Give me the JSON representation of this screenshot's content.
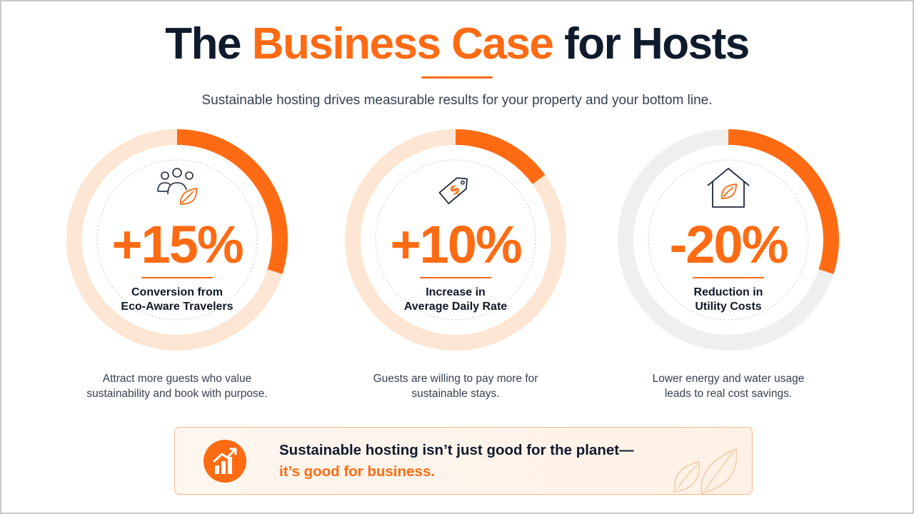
{
  "colors": {
    "accent": "#ff6b13",
    "accent_light": "#fde6d3",
    "track_gray": "#efefef",
    "navy": "#0f1b2d"
  },
  "header": {
    "title_pre": "The ",
    "title_accent": "Business Case",
    "title_post": " for Hosts",
    "subtitle": "Sustainable hosting drives measurable results for your property and your bottom line."
  },
  "stats": [
    {
      "value": "+15%",
      "label_line1": "Conversion from",
      "label_line2": "Eco-Aware Travelers",
      "desc_line1": "Attract more guests who value",
      "desc_line2": "sustainability and book with purpose.",
      "icon": "people-leaf-icon",
      "ring_fill_fraction": 0.3,
      "ring_track": "accent_light"
    },
    {
      "value": "+10%",
      "label_line1": "Increase in",
      "label_line2": "Average Daily Rate",
      "desc_line1": "Guests are willing to pay more for",
      "desc_line2": "sustainable stays.",
      "icon": "price-tag-icon",
      "ring_fill_fraction": 0.15,
      "ring_track": "accent_light"
    },
    {
      "value": "-20%",
      "label_line1": "Reduction in",
      "label_line2": "Utility Costs",
      "desc_line1": "Lower energy and water usage",
      "desc_line2": "leads to real cost savings.",
      "icon": "eco-home-icon",
      "ring_fill_fraction": 0.3,
      "ring_track": "track_gray"
    }
  ],
  "callout": {
    "line1": "Sustainable hosting isn’t just good for the planet—",
    "line2": "it’s good for business.",
    "icon": "growth-chart-icon",
    "decor_icon": "leaves-icon"
  }
}
